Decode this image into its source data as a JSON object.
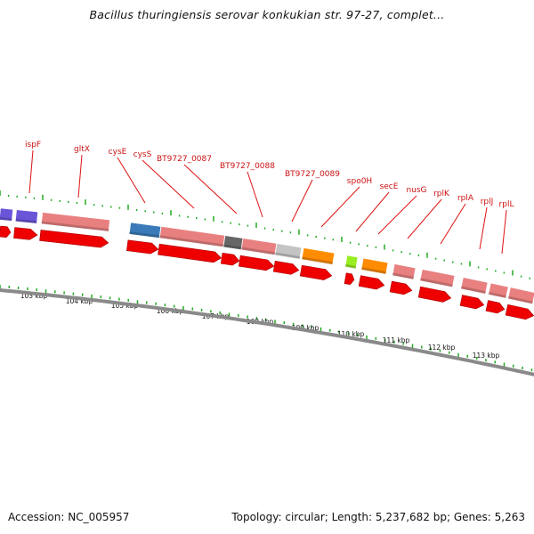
{
  "title": "Bacillus thuringiensis serovar konkukian str. 97-27, complet...",
  "footer": {
    "accession": "Accession: NC_005957",
    "topology": "Topology: circular; Length: 5,237,682 bp; Genes: 5,263"
  },
  "colors": {
    "backbone": "#8a8a8a",
    "tick": "#22aa22",
    "label": "#cc1111",
    "arrow_red": "#ee0000",
    "purple": "#6a55d8",
    "pink": "#e98080",
    "blue": "#3a7ab8",
    "darkgray": "#666666",
    "lightgray": "#c4c4c4",
    "orange": "#ff8c00",
    "lime": "#99ee22"
  },
  "kbp_labels": [
    "103 kbp",
    "104 kbp",
    "105 kbp",
    "106 kbp",
    "107 kbp",
    "108 kbp",
    "109 kbp",
    "110 kbp",
    "111 kbp",
    "112 kbp",
    "113 kbp"
  ],
  "genes": [
    {
      "name": "ispF"
    },
    {
      "name": "gltX"
    },
    {
      "name": "cysE"
    },
    {
      "name": "cysS"
    },
    {
      "name": "BT9727_0087"
    },
    {
      "name": "BT9727_0088"
    },
    {
      "name": "BT9727_0089"
    },
    {
      "name": "spo0H"
    },
    {
      "name": "secE"
    },
    {
      "name": "nusG"
    },
    {
      "name": "rplK"
    },
    {
      "name": "rplA"
    },
    {
      "name": "rplJ"
    },
    {
      "name": "rplL"
    }
  ]
}
